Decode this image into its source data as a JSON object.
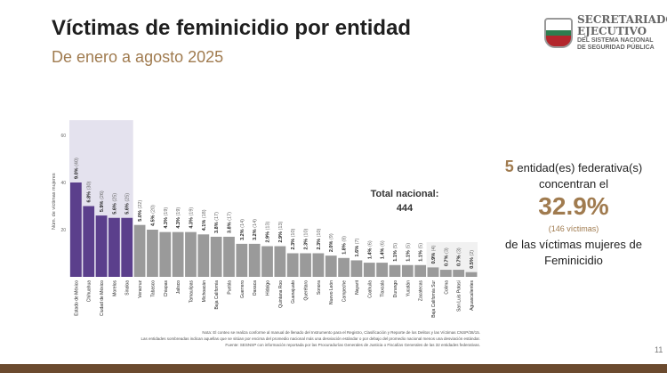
{
  "header": {
    "title": "Víctimas de feminicidio por entidad",
    "subtitle": "De enero a agosto 2025",
    "logo_text": [
      "SECRETARIADO",
      "EJECUTIVO",
      "DEL SISTEMA NACIONAL",
      "DE SEGURIDAD PÚBLICA"
    ]
  },
  "chart_data": {
    "type": "bar",
    "ylabel": "Núm. de víctimas mujeres",
    "ylim": [
      0,
      65
    ],
    "yticks": [
      20,
      40,
      60
    ],
    "categories": [
      "Estado de México",
      "Chihuahua",
      "Ciudad de México",
      "Morelos",
      "Sinaloa",
      "Veracruz",
      "Tabasco",
      "Chiapas",
      "Jalisco",
      "Tamaulipas",
      "Michoacán",
      "Baja California",
      "Puebla",
      "Guerrero",
      "Oaxaca",
      "Hidalgo",
      "Quintana Roo",
      "Guanajuato",
      "Querétaro",
      "Sonora",
      "Nuevo León",
      "Campeche",
      "Nayarit",
      "Coahuila",
      "Tlaxcala",
      "Durango",
      "Yucatán",
      "Zacatecas",
      "Baja California Sur",
      "Colima",
      "San Luis Potosí",
      "Aguascalientes"
    ],
    "values": [
      40,
      30,
      26,
      25,
      25,
      22,
      20,
      19,
      19,
      19,
      18,
      17,
      17,
      14,
      14,
      13,
      13,
      10,
      10,
      10,
      9,
      8,
      7,
      6,
      6,
      5,
      5,
      5,
      4,
      3,
      3,
      2
    ],
    "percents": [
      "9.0%",
      "6.8%",
      "5.9%",
      "5.6%",
      "5.6%",
      "5.0%",
      "4.5%",
      "4.3%",
      "4.3%",
      "4.3%",
      "4.1%",
      "3.8%",
      "3.8%",
      "3.2%",
      "3.2%",
      "2.9%",
      "2.9%",
      "2.3%",
      "2.3%",
      "2.3%",
      "2.0%",
      "1.8%",
      "1.6%",
      "1.4%",
      "1.4%",
      "1.1%",
      "1.1%",
      "1.1%",
      "0.9%",
      "0.7%",
      "0.7%",
      "0.5%"
    ],
    "highlight_count": 5,
    "low_count": 4,
    "colors": {
      "highlight": "#5b3f8c",
      "normal": "#9a9a9a",
      "highlight_band": "#e4e2ee",
      "low_band": "#f1f1f1"
    },
    "grid": false,
    "annotation": {
      "label": "Total nacional:",
      "value": "444"
    }
  },
  "summary": {
    "count": "5",
    "line1": " entidad(es)  federativa(s)",
    "line2": "concentran el",
    "percent": "32.9%",
    "victims": "(146 víctimas)",
    "line3": "de las  víctimas  mujeres de",
    "line4": "Feminicidio"
  },
  "notes": [
    "Nota: El conteo se realiza conforme al manual de llenado del Instrumento para el Registro, Clasificación y Reporte de los Delitos y las Víctimas CNSP/38/15.",
    "Las entidades sombreadas indican aquellas que se sitúan por encima del promedio nacional más una desviación estándar o por debajo del promedio nacional menos una desviación estándar.",
    "Fuente: SESNSP con información reportada por las Procuradurías Generales de Justicia o Fiscalías Generales de las 32 entidades federativas."
  ],
  "page_number": "11"
}
